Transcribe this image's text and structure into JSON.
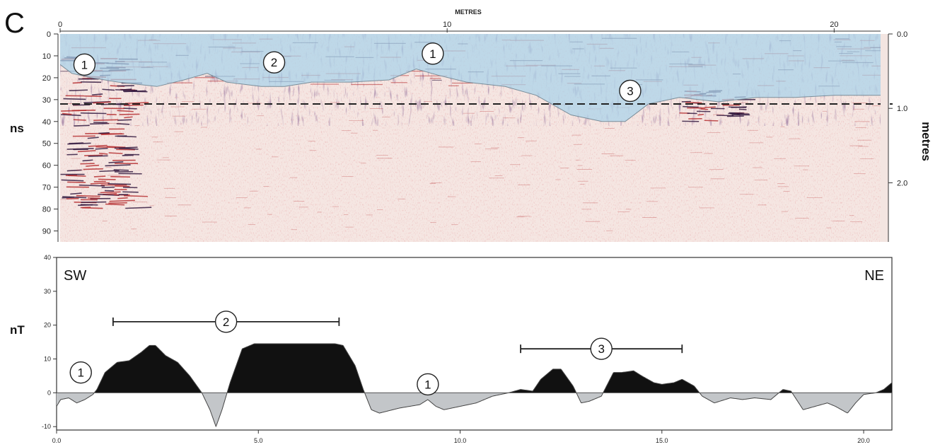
{
  "panel_label": "C",
  "colors": {
    "wave_dark": "#2a1038",
    "wave_red": "#b4282a",
    "wave_pink": "#e7b9b5",
    "background_pink": "#f5e6e2",
    "overlay_blue": "#a9d3ea",
    "positive_fill": "#111111",
    "negative_fill": "#c3c6c9",
    "dashed_line": "#222222"
  },
  "chart_data": [
    {
      "type": "heatmap",
      "title": "",
      "xlabel": "METRES",
      "ylabel": "ns",
      "ylabel_right": "metres",
      "xlim": [
        0,
        21.2
      ],
      "ylim": [
        0,
        95
      ],
      "x_ticks": [
        "0",
        "10",
        "20"
      ],
      "x_tick_values": [
        0,
        10,
        20
      ],
      "y_ticks": [
        "0",
        "10",
        "20",
        "30",
        "40",
        "50",
        "60",
        "70",
        "80",
        "90"
      ],
      "y_right_ticks": [
        "0.0",
        "1.0",
        "2.0"
      ],
      "y_right_tick_ns": [
        0,
        34,
        68
      ],
      "dashed_line_ns": 32,
      "overlay_boundary": {
        "x": [
          0,
          0.3,
          0.8,
          1.5,
          2.5,
          3.2,
          3.8,
          4.3,
          5.2,
          5.8,
          6.5,
          7.5,
          8.5,
          9.2,
          9.8,
          10.5,
          11.5,
          12.3,
          13.2,
          14.0,
          14.6,
          15.2,
          16.0,
          17.0,
          18.0,
          19.0,
          20.0,
          21.2
        ],
        "y": [
          14,
          18,
          20,
          22,
          24,
          21,
          18,
          22,
          24,
          24,
          22,
          22,
          21,
          16,
          19,
          22,
          24,
          28,
          37,
          40,
          40,
          32,
          29,
          31,
          29,
          29,
          28,
          28
        ]
      },
      "annotations": [
        {
          "label": "1",
          "x": 0.3,
          "y": 14
        },
        {
          "label": "2",
          "x": 5.2,
          "y": 13
        },
        {
          "label": "1",
          "x": 9.3,
          "y": 9
        },
        {
          "label": "3",
          "x": 14.4,
          "y": 26
        }
      ]
    },
    {
      "type": "area",
      "title": "",
      "xlabel": "",
      "ylabel": "nT",
      "xlim": [
        0,
        20.7
      ],
      "ylim": [
        -11,
        40
      ],
      "x_ticks": [
        "0.0",
        "5.0",
        "10.0",
        "15.0",
        "20.0"
      ],
      "x_tick_values": [
        0,
        5,
        10,
        15,
        20
      ],
      "y_ticks": [
        "40",
        "30",
        "20",
        "10",
        "0",
        "-10"
      ],
      "y_tick_values": [
        40,
        30,
        20,
        10,
        0,
        -10
      ],
      "corner_labels": [
        "SW",
        "NE"
      ],
      "series": [
        {
          "x": [
            0.0,
            0.1,
            0.3,
            0.5,
            0.7,
            0.9,
            1.0,
            1.2,
            1.5,
            1.8,
            2.1,
            2.3,
            2.45,
            2.7,
            3.0,
            3.3,
            3.6,
            3.8,
            3.95,
            4.1,
            4.3,
            4.6,
            4.9,
            5.2,
            5.5,
            6.0,
            6.5,
            6.9,
            7.1,
            7.4,
            7.6,
            7.8,
            8.0,
            8.5,
            9.0,
            9.2,
            9.4,
            9.6,
            10.0,
            10.4,
            10.8,
            11.2,
            11.5,
            11.8,
            12.0,
            12.3,
            12.5,
            12.8,
            13.0,
            13.2,
            13.5,
            13.8,
            14.0,
            14.3,
            14.5,
            14.8,
            15.0,
            15.3,
            15.5,
            15.8,
            16.0,
            16.3,
            16.7,
            17.0,
            17.3,
            17.7,
            18.0,
            18.2,
            18.5,
            18.8,
            19.1,
            19.3,
            19.6,
            19.8,
            20.0,
            20.3,
            20.5,
            20.7
          ],
          "values": [
            -4,
            -2,
            -1.5,
            -3,
            -2,
            -0.5,
            1,
            6,
            9,
            9.5,
            12,
            14,
            14,
            11,
            9,
            5,
            0,
            -5,
            -10,
            -5,
            3,
            13,
            14.5,
            14.5,
            14.5,
            14.5,
            14.5,
            14.5,
            14,
            8,
            1,
            -5,
            -6,
            -4.5,
            -3.5,
            -2,
            -4,
            -5,
            -4,
            -3,
            -1,
            0,
            1,
            0.5,
            4,
            7,
            7,
            2,
            -3,
            -2.5,
            -1,
            6,
            6,
            6.5,
            5,
            3,
            2.5,
            3,
            4,
            2,
            -1,
            -3,
            -1.5,
            -2,
            -1.5,
            -2,
            1,
            0.5,
            -5,
            -4,
            -3,
            -4,
            -6,
            -3,
            -0.5,
            0,
            1,
            3
          ]
        }
      ],
      "brackets": [
        {
          "label": "2",
          "x_start": 1.4,
          "x_end": 7.0,
          "y": 21
        },
        {
          "label": "3",
          "x_start": 11.5,
          "x_end": 15.5,
          "y": 13
        }
      ],
      "annotations": [
        {
          "label": "1",
          "x": 0.6,
          "y": 6
        },
        {
          "label": "1",
          "x": 9.2,
          "y": 2.5
        }
      ]
    }
  ]
}
